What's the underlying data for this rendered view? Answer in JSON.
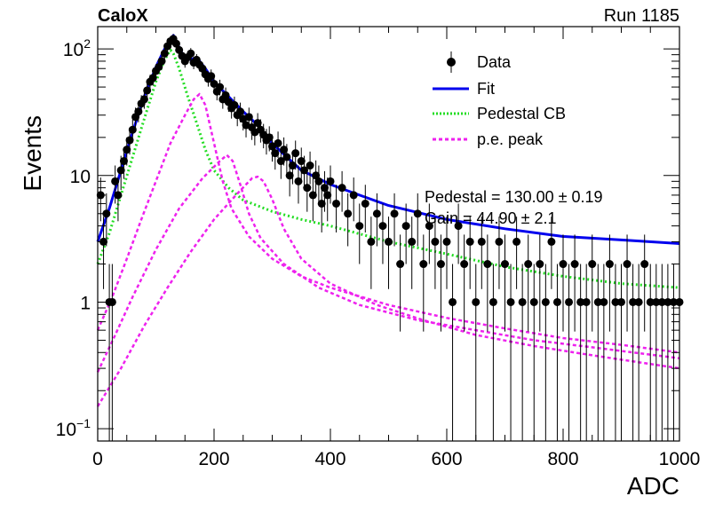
{
  "header": {
    "experiment": "CaloX",
    "run": "Run 1185"
  },
  "legend": {
    "items": [
      {
        "label": "Data",
        "kind": "marker",
        "color": "#000000"
      },
      {
        "label": "Fit",
        "kind": "line",
        "color": "#0000ee"
      },
      {
        "label": "Pedestal CB",
        "kind": "dotted",
        "color": "#22dd22"
      },
      {
        "label": "p.e. peak",
        "kind": "dashed",
        "color": "#ee22ee"
      }
    ]
  },
  "stats": {
    "line1": "Pedestal = 130.00 ± 0.19",
    "line2": "Gain = 44.90 ± 2.1"
  },
  "chart_data": {
    "type": "scatter",
    "xlabel": "ADC",
    "ylabel": "Events",
    "xlim": [
      0,
      1000
    ],
    "ylim": [
      0.08,
      150
    ],
    "yscale": "log",
    "grid": false,
    "legend_position": "top-right",
    "x_ticks": [
      0,
      200,
      400,
      600,
      800,
      1000
    ],
    "y_ticks": [
      {
        "value": 100,
        "base": "10",
        "exp": "2"
      },
      {
        "value": 10,
        "text": "10"
      },
      {
        "value": 1,
        "text": "1"
      },
      {
        "value": 0.1,
        "base": "10",
        "exp": "−1"
      }
    ],
    "colors": {
      "data": "#000000",
      "fit": "#0000ee",
      "pedestal": "#22dd22",
      "pe_peak": "#ee22ee"
    },
    "series": [
      {
        "name": "Data",
        "kind": "points",
        "points": [
          [
            5,
            7
          ],
          [
            10,
            3
          ],
          [
            15,
            5
          ],
          [
            20,
            1
          ],
          [
            25,
            1
          ],
          [
            30,
            9
          ],
          [
            35,
            7
          ],
          [
            40,
            11
          ],
          [
            45,
            13
          ],
          [
            50,
            16
          ],
          [
            55,
            19
          ],
          [
            60,
            23
          ],
          [
            65,
            29
          ],
          [
            70,
            32
          ],
          [
            75,
            37
          ],
          [
            80,
            40
          ],
          [
            85,
            47
          ],
          [
            90,
            55
          ],
          [
            95,
            59
          ],
          [
            100,
            67
          ],
          [
            105,
            72
          ],
          [
            110,
            80
          ],
          [
            115,
            92
          ],
          [
            120,
            105
          ],
          [
            125,
            115
          ],
          [
            130,
            120
          ],
          [
            135,
            110
          ],
          [
            140,
            98
          ],
          [
            145,
            88
          ],
          [
            150,
            80
          ],
          [
            155,
            86
          ],
          [
            160,
            92
          ],
          [
            165,
            78
          ],
          [
            170,
            82
          ],
          [
            175,
            75
          ],
          [
            180,
            70
          ],
          [
            185,
            63
          ],
          [
            190,
            58
          ],
          [
            195,
            61
          ],
          [
            200,
            53
          ],
          [
            205,
            46
          ],
          [
            210,
            50
          ],
          [
            215,
            40
          ],
          [
            220,
            43
          ],
          [
            225,
            38
          ],
          [
            230,
            34
          ],
          [
            235,
            36
          ],
          [
            240,
            30
          ],
          [
            245,
            32
          ],
          [
            250,
            28
          ],
          [
            255,
            25
          ],
          [
            260,
            29
          ],
          [
            265,
            24
          ],
          [
            270,
            22
          ],
          [
            275,
            26
          ],
          [
            280,
            23
          ],
          [
            285,
            21
          ],
          [
            290,
            19
          ],
          [
            295,
            20
          ],
          [
            300,
            17
          ],
          [
            305,
            15
          ],
          [
            310,
            18
          ],
          [
            315,
            13
          ],
          [
            320,
            16
          ],
          [
            325,
            14
          ],
          [
            330,
            10
          ],
          [
            335,
            12
          ],
          [
            340,
            15
          ],
          [
            345,
            9
          ],
          [
            350,
            13
          ],
          [
            355,
            11
          ],
          [
            360,
            8
          ],
          [
            365,
            12
          ],
          [
            370,
            7
          ],
          [
            375,
            10
          ],
          [
            380,
            9
          ],
          [
            385,
            6
          ],
          [
            390,
            8
          ],
          [
            395,
            7
          ],
          [
            400,
            9
          ],
          [
            410,
            6
          ],
          [
            420,
            8
          ],
          [
            430,
            5
          ],
          [
            440,
            7
          ],
          [
            450,
            4
          ],
          [
            460,
            6
          ],
          [
            470,
            3
          ],
          [
            480,
            5
          ],
          [
            490,
            4
          ],
          [
            500,
            3
          ],
          [
            510,
            5
          ],
          [
            520,
            2
          ],
          [
            530,
            4
          ],
          [
            540,
            3
          ],
          [
            550,
            5
          ],
          [
            560,
            2
          ],
          [
            570,
            4
          ],
          [
            580,
            3
          ],
          [
            590,
            2
          ],
          [
            600,
            3
          ],
          [
            610,
            1
          ],
          [
            620,
            4
          ],
          [
            630,
            2
          ],
          [
            640,
            3
          ],
          [
            650,
            1
          ],
          [
            660,
            3
          ],
          [
            670,
            2
          ],
          [
            680,
            1
          ],
          [
            690,
            3
          ],
          [
            700,
            2
          ],
          [
            710,
            1
          ],
          [
            720,
            3
          ],
          [
            730,
            1
          ],
          [
            740,
            2
          ],
          [
            750,
            1
          ],
          [
            760,
            2
          ],
          [
            770,
            1
          ],
          [
            780,
            3
          ],
          [
            790,
            1
          ],
          [
            800,
            2
          ],
          [
            810,
            1
          ],
          [
            820,
            2
          ],
          [
            830,
            1
          ],
          [
            840,
            1
          ],
          [
            850,
            2
          ],
          [
            860,
            1
          ],
          [
            870,
            1
          ],
          [
            880,
            2
          ],
          [
            890,
            1
          ],
          [
            900,
            1
          ],
          [
            910,
            2
          ],
          [
            920,
            1
          ],
          [
            930,
            1
          ],
          [
            940,
            2
          ],
          [
            950,
            1
          ],
          [
            960,
            1
          ],
          [
            970,
            1
          ],
          [
            980,
            1
          ],
          [
            990,
            1
          ],
          [
            1000,
            1
          ]
        ]
      },
      {
        "name": "Fit",
        "kind": "line",
        "points": [
          [
            0,
            3
          ],
          [
            20,
            5.5
          ],
          [
            40,
            11
          ],
          [
            60,
            22
          ],
          [
            80,
            42
          ],
          [
            100,
            72
          ],
          [
            115,
            100
          ],
          [
            130,
            128
          ],
          [
            145,
            92
          ],
          [
            160,
            82
          ],
          [
            170,
            86
          ],
          [
            185,
            70
          ],
          [
            200,
            55
          ],
          [
            225,
            42
          ],
          [
            250,
            32
          ],
          [
            275,
            25
          ],
          [
            300,
            18
          ],
          [
            325,
            14
          ],
          [
            350,
            11
          ],
          [
            400,
            8.5
          ],
          [
            450,
            7
          ],
          [
            500,
            5.8
          ],
          [
            600,
            4.5
          ],
          [
            700,
            3.8
          ],
          [
            800,
            3.3
          ],
          [
            900,
            3.1
          ],
          [
            1000,
            2.9
          ]
        ]
      },
      {
        "name": "Pedestal CB",
        "kind": "line",
        "points": [
          [
            0,
            2
          ],
          [
            20,
            3.5
          ],
          [
            40,
            7
          ],
          [
            60,
            14
          ],
          [
            80,
            28
          ],
          [
            100,
            55
          ],
          [
            115,
            82
          ],
          [
            125,
            98
          ],
          [
            130,
            92
          ],
          [
            140,
            70
          ],
          [
            155,
            42
          ],
          [
            170,
            26
          ],
          [
            185,
            16
          ],
          [
            200,
            11
          ],
          [
            225,
            8
          ],
          [
            250,
            6.4
          ],
          [
            300,
            5.2
          ],
          [
            350,
            4.5
          ],
          [
            400,
            4
          ],
          [
            500,
            3
          ],
          [
            600,
            2.4
          ],
          [
            700,
            1.9
          ],
          [
            800,
            1.6
          ],
          [
            900,
            1.4
          ],
          [
            1000,
            1.3
          ]
        ]
      },
      {
        "name": "p.e. peak 1",
        "kind": "line",
        "points": [
          [
            0,
            0.6
          ],
          [
            25,
            1.1
          ],
          [
            50,
            2.2
          ],
          [
            75,
            4.5
          ],
          [
            100,
            9
          ],
          [
            125,
            18
          ],
          [
            150,
            30
          ],
          [
            165,
            40
          ],
          [
            175,
            44
          ],
          [
            185,
            36
          ],
          [
            200,
            18
          ],
          [
            215,
            9
          ],
          [
            230,
            5.5
          ],
          [
            260,
            3.3
          ],
          [
            300,
            2.2
          ],
          [
            350,
            1.6
          ],
          [
            400,
            1.3
          ],
          [
            500,
            0.95
          ],
          [
            600,
            0.75
          ],
          [
            700,
            0.62
          ],
          [
            800,
            0.52
          ],
          [
            900,
            0.46
          ],
          [
            1000,
            0.4
          ]
        ]
      },
      {
        "name": "p.e. peak 2",
        "kind": "line",
        "points": [
          [
            0,
            0.28
          ],
          [
            30,
            0.55
          ],
          [
            60,
            1.1
          ],
          [
            100,
            2.6
          ],
          [
            140,
            5.5
          ],
          [
            180,
            9.5
          ],
          [
            210,
            13
          ],
          [
            222,
            14.5
          ],
          [
            232,
            13
          ],
          [
            245,
            8.5
          ],
          [
            260,
            5
          ],
          [
            280,
            3.2
          ],
          [
            320,
            2
          ],
          [
            380,
            1.3
          ],
          [
            450,
            0.95
          ],
          [
            550,
            0.72
          ],
          [
            650,
            0.6
          ],
          [
            750,
            0.5
          ],
          [
            850,
            0.44
          ],
          [
            1000,
            0.36
          ]
        ]
      },
      {
        "name": "p.e. peak 3",
        "kind": "line",
        "points": [
          [
            0,
            0.15
          ],
          [
            40,
            0.3
          ],
          [
            80,
            0.65
          ],
          [
            120,
            1.3
          ],
          [
            160,
            2.5
          ],
          [
            200,
            4.5
          ],
          [
            240,
            7.2
          ],
          [
            265,
            9.5
          ],
          [
            275,
            9.8
          ],
          [
            285,
            9
          ],
          [
            300,
            6.5
          ],
          [
            320,
            3.8
          ],
          [
            350,
            2.2
          ],
          [
            400,
            1.4
          ],
          [
            480,
            0.95
          ],
          [
            560,
            0.72
          ],
          [
            650,
            0.55
          ],
          [
            750,
            0.45
          ],
          [
            850,
            0.38
          ],
          [
            1000,
            0.3
          ]
        ]
      }
    ]
  }
}
